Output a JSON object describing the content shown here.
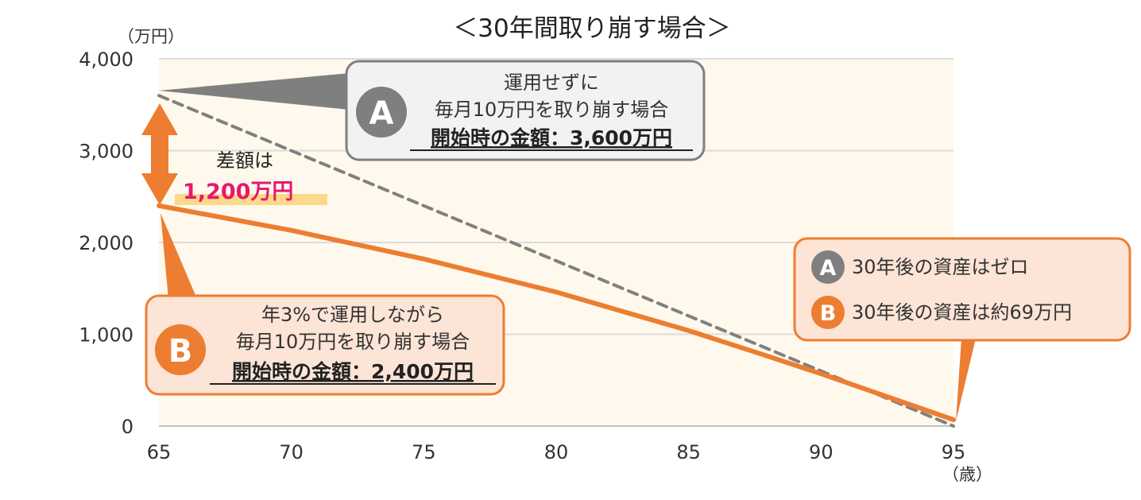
{
  "chart_data": {
    "type": "line",
    "title": "＜30年間取り崩す場合＞",
    "y_unit": "（万円）",
    "x_unit": "（歳）",
    "xlim": [
      65,
      95
    ],
    "ylim": [
      0,
      4000
    ],
    "x_ticks": [
      "65",
      "70",
      "75",
      "80",
      "85",
      "90",
      "95"
    ],
    "y_ticks": [
      "0",
      "1,000",
      "2,000",
      "3,000",
      "4,000"
    ],
    "grid": true,
    "plot_background": "#fef9ec",
    "series": [
      {
        "id": "A",
        "color": "#808080",
        "style": "dashed",
        "points": [
          [
            65,
            3600
          ],
          [
            95,
            0
          ]
        ]
      },
      {
        "id": "B",
        "color": "#ed7d31",
        "style": "solid",
        "points": [
          [
            65,
            2400
          ],
          [
            70,
            2132
          ],
          [
            75,
            1820
          ],
          [
            80,
            1460
          ],
          [
            85,
            1040
          ],
          [
            88,
            760
          ],
          [
            90,
            570
          ],
          [
            93,
            270
          ],
          [
            95,
            69
          ]
        ]
      }
    ],
    "callout_a": {
      "badge": "A",
      "badge_color": "#7f7f7f",
      "lines": [
        "運用せずに",
        "毎月10万円を取り崩す場合"
      ],
      "bold_line": "開始時の金額：3,600万円"
    },
    "callout_b": {
      "badge": "B",
      "badge_color": "#ed7d31",
      "lines": [
        "年3%で運用しながら",
        "毎月10万円を取り崩す場合"
      ],
      "bold_line": "開始時の金額：2,400万円"
    },
    "difference": {
      "label": "差額は",
      "value": "1,200万円"
    },
    "legend": [
      {
        "badge": "A",
        "badge_color": "#7f7f7f",
        "text": "30年後の資産はゼロ"
      },
      {
        "badge": "B",
        "badge_color": "#ed7d31",
        "text": "30年後の資産は約69万円"
      }
    ]
  }
}
